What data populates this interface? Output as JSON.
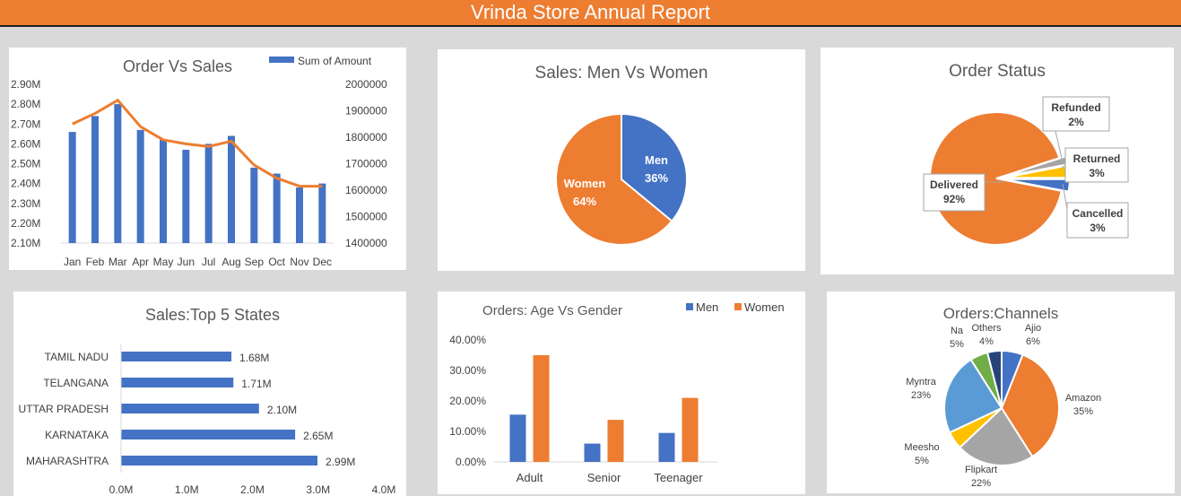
{
  "header": {
    "title": "Vrinda Store Annual Report"
  },
  "colors": {
    "blue": "#4472c4",
    "orange": "#ed7d31",
    "gray": "#a5a5a5",
    "yellow": "#ffc000",
    "lightblue": "#5b9bd5",
    "green": "#70ad47",
    "navy": "#264478"
  },
  "chart_data": [
    {
      "id": "order-vs-sales",
      "type": "bar",
      "title": "Order Vs Sales",
      "categories": [
        "Jan",
        "Feb",
        "Mar",
        "Apr",
        "May",
        "Jun",
        "Jul",
        "Aug",
        "Sep",
        "Oct",
        "Nov",
        "Dec"
      ],
      "series": [
        {
          "name": "Sum of Amount",
          "type": "bar",
          "axis": "left",
          "values": [
            2.66,
            2.74,
            2.8,
            2.67,
            2.62,
            2.57,
            2.6,
            2.64,
            2.48,
            2.45,
            2.38,
            2.4
          ]
        },
        {
          "name": "",
          "type": "line",
          "axis": "right",
          "values": [
            1850000,
            1890000,
            1940000,
            1840000,
            1790000,
            1775000,
            1765000,
            1785000,
            1695000,
            1645000,
            1615000,
            1615000
          ]
        }
      ],
      "left_axis": {
        "ylim": [
          2.1,
          2.9
        ],
        "ticks": [
          "2.10M",
          "2.20M",
          "2.30M",
          "2.40M",
          "2.50M",
          "2.60M",
          "2.70M",
          "2.80M",
          "2.90M"
        ]
      },
      "right_axis": {
        "ylim": [
          1400000,
          2000000
        ],
        "ticks": [
          "1400000",
          "1500000",
          "1600000",
          "1700000",
          "1800000",
          "1900000",
          "2000000"
        ]
      },
      "legend": "top-right"
    },
    {
      "id": "sales-men-women",
      "type": "pie",
      "title": "Sales: Men Vs Women",
      "slices": [
        {
          "label": "Men",
          "value": 36,
          "text": "36%"
        },
        {
          "label": "Women",
          "value": 64,
          "text": "64%"
        }
      ]
    },
    {
      "id": "order-status",
      "type": "pie",
      "title": "Order Status",
      "slices": [
        {
          "label": "Cancelled",
          "value": 3,
          "text": "3%"
        },
        {
          "label": "Delivered",
          "value": 92,
          "text": "92%"
        },
        {
          "label": "Refunded",
          "value": 2,
          "text": "2%"
        },
        {
          "label": "Returned",
          "value": 3,
          "text": "3%"
        }
      ]
    },
    {
      "id": "top-5-states",
      "type": "bar",
      "orientation": "horizontal",
      "title": "Sales:Top 5 States",
      "categories": [
        "TAMIL NADU",
        "TELANGANA",
        "UTTAR PRADESH",
        "KARNATAKA",
        "MAHARASHTRA"
      ],
      "values": [
        1.68,
        1.71,
        2.1,
        2.65,
        2.99
      ],
      "value_labels": [
        "1.68M",
        "1.71M",
        "2.10M",
        "2.65M",
        "2.99M"
      ],
      "xlim": [
        0,
        4
      ],
      "ticks": [
        "0.0M",
        "1.0M",
        "2.0M",
        "3.0M",
        "4.0M"
      ]
    },
    {
      "id": "age-vs-gender",
      "type": "bar",
      "title": "Orders: Age Vs Gender",
      "categories": [
        "Adult",
        "Senior",
        "Teenager"
      ],
      "series": [
        {
          "name": "Men",
          "values": [
            15.5,
            6.0,
            9.5
          ]
        },
        {
          "name": "Women",
          "values": [
            35.0,
            13.8,
            21.0
          ]
        }
      ],
      "ylim": [
        0,
        40
      ],
      "ticks": [
        "0.00%",
        "10.00%",
        "20.00%",
        "30.00%",
        "40.00%"
      ],
      "legend": "top-right"
    },
    {
      "id": "channels",
      "type": "pie",
      "title": "Orders:Channels",
      "slices": [
        {
          "label": "Ajio",
          "value": 6,
          "text": "6%"
        },
        {
          "label": "Amazon",
          "value": 35,
          "text": "35%"
        },
        {
          "label": "Flipkart",
          "value": 22,
          "text": "22%"
        },
        {
          "label": "Meesho",
          "value": 5,
          "text": "5%"
        },
        {
          "label": "Myntra",
          "value": 23,
          "text": "23%"
        },
        {
          "label": "Na",
          "value": 5,
          "text": "5%"
        },
        {
          "label": "Others",
          "value": 4,
          "text": "4%"
        }
      ]
    }
  ]
}
